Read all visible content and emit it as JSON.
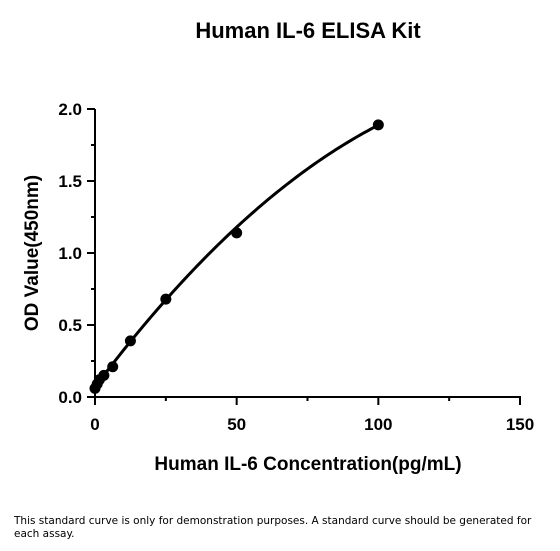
{
  "footnote": "This standard curve is only for demonstration purposes. A standard curve should be generated for each assay.",
  "chart_data": {
    "type": "scatter",
    "title": "Human IL-6 ELISA Kit",
    "xlabel": "Human IL-6 Concentration(pg/mL)",
    "ylabel": "OD Value(450nm)",
    "xlim": [
      0,
      150
    ],
    "ylim": [
      0,
      2.0
    ],
    "xticks": [
      "0",
      "50",
      "100",
      "150"
    ],
    "yticks": [
      "0.0",
      "0.5",
      "1.0",
      "1.5",
      "2.0"
    ],
    "grid": false,
    "points": {
      "x": [
        0,
        0.78,
        1.56,
        3.13,
        6.25,
        12.5,
        25,
        50,
        100
      ],
      "y": [
        0.06,
        0.09,
        0.12,
        0.15,
        0.21,
        0.39,
        0.68,
        1.14,
        1.89
      ]
    },
    "fit_curve": {
      "type": "quadratic",
      "coefficients": [
        0.07,
        0.0262,
        -8.02e-05
      ]
    },
    "colors": {
      "points": "#000000",
      "curve": "#000000",
      "axes": "#000000"
    }
  }
}
